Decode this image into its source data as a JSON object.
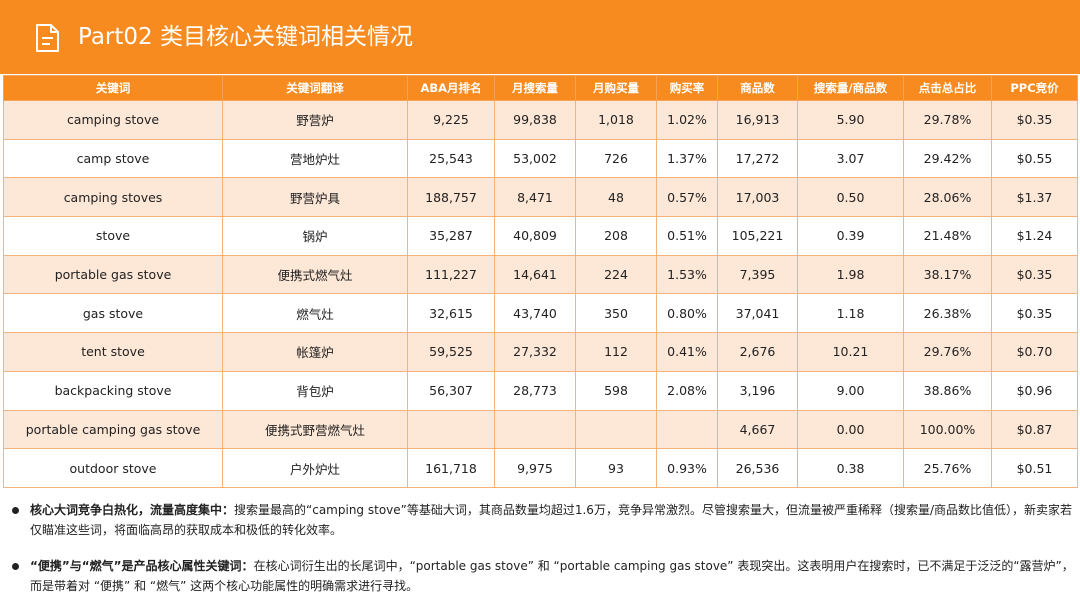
{
  "header": {
    "title": "Part02 类目核心关键词相关情况",
    "icon": "document-icon"
  },
  "table": {
    "columns": [
      "关键词",
      "关键词翻译",
      "ABA月排名",
      "月搜索量",
      "月购买量",
      "购买率",
      "商品数",
      "搜索量/商品数",
      "点击总占比",
      "PPC竞价"
    ],
    "rows": [
      [
        "camping stove",
        "野营炉",
        "9,225",
        "99,838",
        "1,018",
        "1.02%",
        "16,913",
        "5.90",
        "29.78%",
        "$0.35"
      ],
      [
        "camp stove",
        "营地炉灶",
        "25,543",
        "53,002",
        "726",
        "1.37%",
        "17,272",
        "3.07",
        "29.42%",
        "$0.55"
      ],
      [
        "camping stoves",
        "野营炉具",
        "188,757",
        "8,471",
        "48",
        "0.57%",
        "17,003",
        "0.50",
        "28.06%",
        "$1.37"
      ],
      [
        "stove",
        "锅炉",
        "35,287",
        "40,809",
        "208",
        "0.51%",
        "105,221",
        "0.39",
        "21.48%",
        "$1.24"
      ],
      [
        "portable gas stove",
        "便携式燃气灶",
        "111,227",
        "14,641",
        "224",
        "1.53%",
        "7,395",
        "1.98",
        "38.17%",
        "$0.35"
      ],
      [
        "gas stove",
        "燃气灶",
        "32,615",
        "43,740",
        "350",
        "0.80%",
        "37,041",
        "1.18",
        "26.38%",
        "$0.35"
      ],
      [
        "tent stove",
        "帐篷炉",
        "59,525",
        "27,332",
        "112",
        "0.41%",
        "2,676",
        "10.21",
        "29.76%",
        "$0.70"
      ],
      [
        "backpacking stove",
        "背包炉",
        "56,307",
        "28,773",
        "598",
        "2.08%",
        "3,196",
        "9.00",
        "38.86%",
        "$0.96"
      ],
      [
        "portable camping gas stove",
        "便携式野营燃气灶",
        "",
        "",
        "",
        "",
        "4,667",
        "0.00",
        "100.00%",
        "$0.87"
      ],
      [
        "outdoor stove",
        "户外炉灶",
        "161,718",
        "9,975",
        "93",
        "0.93%",
        "26,536",
        "0.38",
        "25.76%",
        "$0.51"
      ]
    ]
  },
  "notes": [
    {
      "bold": "核心大词竞争白热化，流量高度集中：",
      "text": "搜索量最高的“camping stove”等基础大词，其商品数量均超过1.6万，竞争异常激烈。尽管搜索量大，但流量被严重稀释（搜索量/商品数比值低），新卖家若仅瞄准这些词，将面临高昂的获取成本和极低的转化效率。"
    },
    {
      "bold": "“便携”与“燃气”是产品核心属性关键词：",
      "text": "在核心词衍生出的长尾词中，“portable gas stove” 和 “portable camping gas stove” 表现突出。这表明用户在搜索时，已不满足于泛泛的“露营炉”，而是带着对 “便携” 和 “燃气” 这两个核心功能属性的明确需求进行寻找。"
    }
  ]
}
